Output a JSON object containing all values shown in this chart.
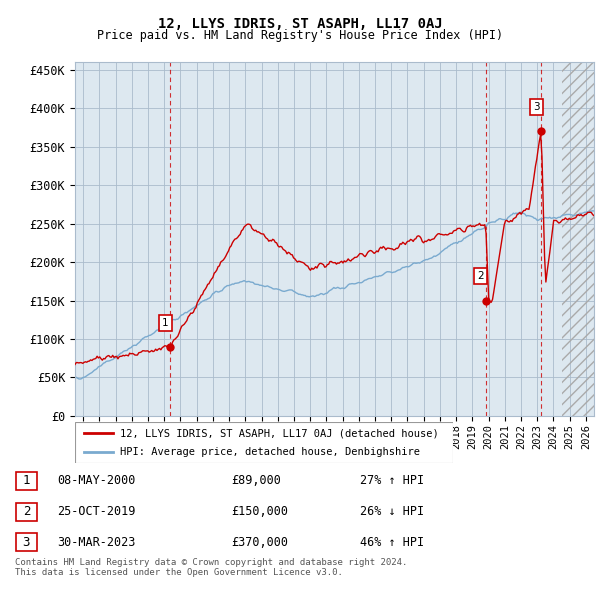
{
  "title": "12, LLYS IDRIS, ST ASAPH, LL17 0AJ",
  "subtitle": "Price paid vs. HM Land Registry's House Price Index (HPI)",
  "ylim": [
    0,
    460000
  ],
  "yticks": [
    0,
    50000,
    100000,
    150000,
    200000,
    250000,
    300000,
    350000,
    400000,
    450000
  ],
  "background_color": "#dde8f0",
  "grid_color": "#aabbcc",
  "red_color": "#cc0000",
  "blue_color": "#7aaacf",
  "transactions": [
    {
      "date_num": 2000.37,
      "price": 89000,
      "label": "1"
    },
    {
      "date_num": 2019.82,
      "price": 150000,
      "label": "2"
    },
    {
      "date_num": 2023.25,
      "price": 370000,
      "label": "3"
    }
  ],
  "legend_entries": [
    {
      "label": "12, LLYS IDRIS, ST ASAPH, LL17 0AJ (detached house)",
      "color": "#cc0000"
    },
    {
      "label": "HPI: Average price, detached house, Denbighshire",
      "color": "#7aaacf"
    }
  ],
  "table_rows": [
    {
      "num": "1",
      "date": "08-MAY-2000",
      "price": "£89,000",
      "hpi": "27% ↑ HPI"
    },
    {
      "num": "2",
      "date": "25-OCT-2019",
      "price": "£150,000",
      "hpi": "26% ↓ HPI"
    },
    {
      "num": "3",
      "date": "30-MAR-2023",
      "price": "£370,000",
      "hpi": "46% ↑ HPI"
    }
  ],
  "footnote": "Contains HM Land Registry data © Crown copyright and database right 2024.\nThis data is licensed under the Open Government Licence v3.0.",
  "xmin": 1994.5,
  "xmax": 2026.5
}
